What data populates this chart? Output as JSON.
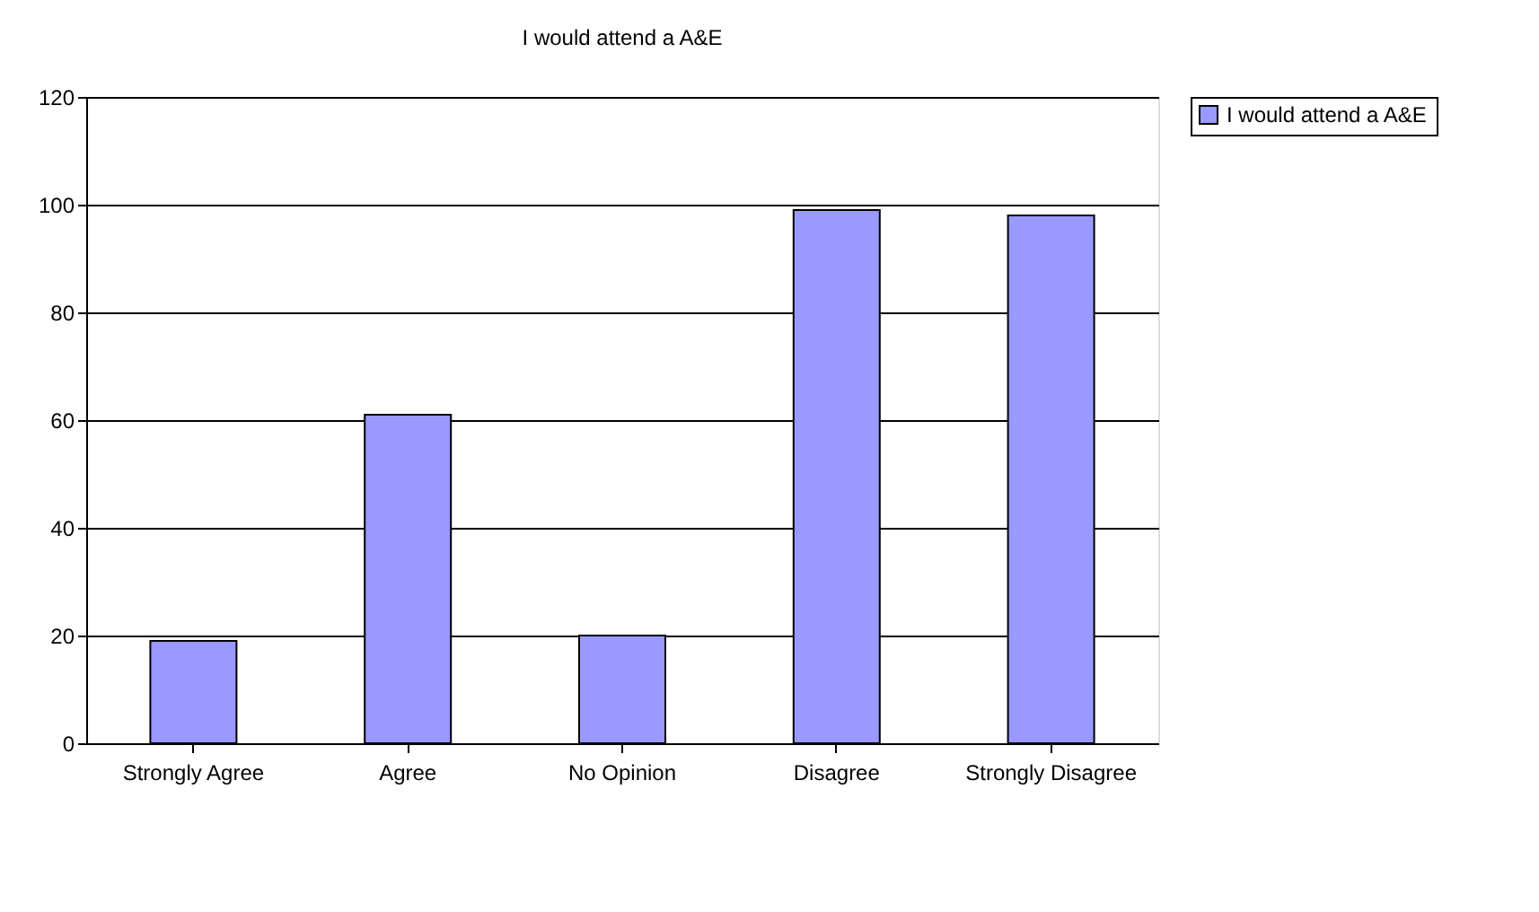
{
  "chart_data": {
    "type": "bar",
    "title": "I would attend a A&E",
    "categories": [
      "Strongly Agree",
      "Agree",
      "No Opinion",
      "Disagree",
      "Strongly Disagree"
    ],
    "series": [
      {
        "name": "I would attend a A&E",
        "color": "#9999ff",
        "values": [
          19,
          61,
          20,
          99,
          98
        ]
      }
    ],
    "ylim": [
      0,
      120
    ],
    "yticks": [
      0,
      20,
      40,
      60,
      80,
      100,
      120
    ],
    "grid": "y",
    "legend": "right"
  }
}
